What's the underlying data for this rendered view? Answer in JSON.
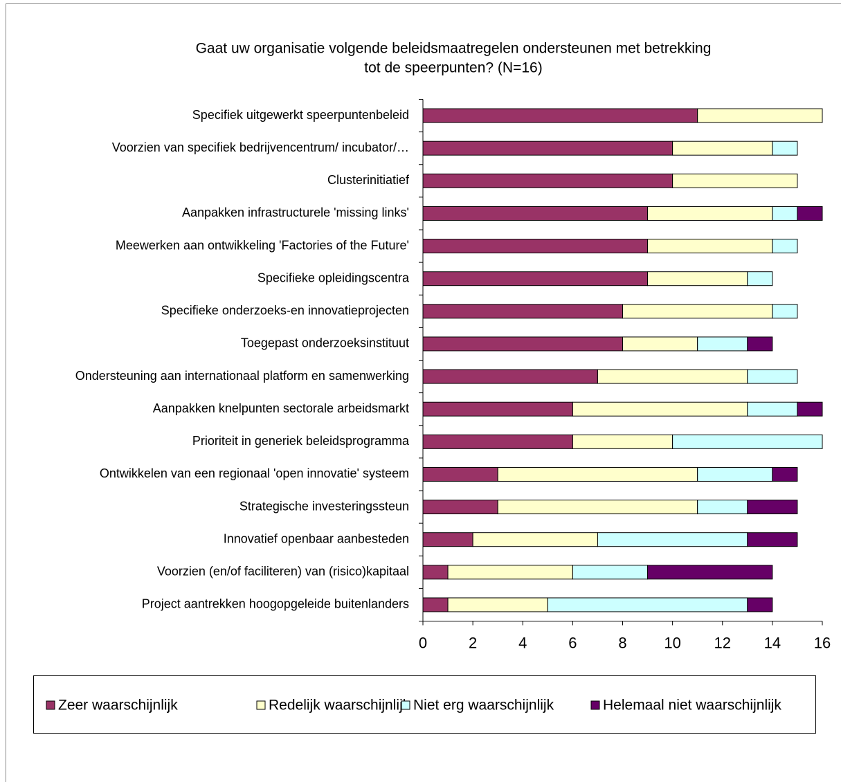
{
  "chart_data": {
    "type": "stacked-bar-horizontal",
    "title": [
      "Gaat uw organisatie volgende beleidsmaatregelen ondersteunen met betrekking",
      "tot de speerpunten? (N=16)"
    ],
    "categories": [
      "Specifiek uitgewerkt speerpuntenbeleid",
      "Voorzien van specifiek bedrijvencentrum/ incubator/…",
      "Clusterinitiatief",
      "Aanpakken infrastructurele 'missing links'",
      "Meewerken aan ontwikkeling 'Factories of the Future'",
      "Specifieke opleidingscentra",
      "Specifieke onderzoeks-en innovatieprojecten",
      "Toegepast onderzoeksinstituut",
      "Ondersteuning aan internationaal platform en samenwerking",
      "Aanpakken knelpunten sectorale arbeidsmarkt",
      "Prioriteit in generiek beleidsprogramma",
      "Ontwikkelen van een regionaal 'open innovatie' systeem",
      "Strategische investeringssteun",
      "Innovatief openbaar aanbesteden",
      "Voorzien (en/of faciliteren) van (risico)kapitaal",
      "Project aantrekken hoogopgeleide buitenlanders"
    ],
    "series": [
      {
        "name": "Zeer waarschijnlijk",
        "color": "#993366",
        "values": [
          11,
          10,
          10,
          9,
          9,
          9,
          8,
          8,
          7,
          6,
          6,
          3,
          3,
          2,
          1,
          1
        ]
      },
      {
        "name": "Redelijk waarschijnlijk",
        "color": "#ffffcc",
        "values": [
          5,
          4,
          5,
          5,
          5,
          4,
          6,
          3,
          6,
          7,
          4,
          8,
          8,
          5,
          5,
          4
        ]
      },
      {
        "name": "Niet erg waarschijnlijk",
        "color": "#ccffff",
        "values": [
          0,
          1,
          0,
          1,
          1,
          1,
          1,
          2,
          2,
          2,
          6,
          3,
          2,
          6,
          3,
          8
        ]
      },
      {
        "name": "Helemaal niet waarschijnlijk",
        "color": "#660066",
        "values": [
          0,
          0,
          0,
          1,
          0,
          0,
          0,
          1,
          0,
          1,
          0,
          1,
          2,
          2,
          5,
          1
        ]
      }
    ],
    "xlim": [
      0,
      16
    ],
    "xticks": [
      0,
      2,
      4,
      6,
      8,
      10,
      12,
      14,
      16
    ],
    "legend": "bottom"
  }
}
